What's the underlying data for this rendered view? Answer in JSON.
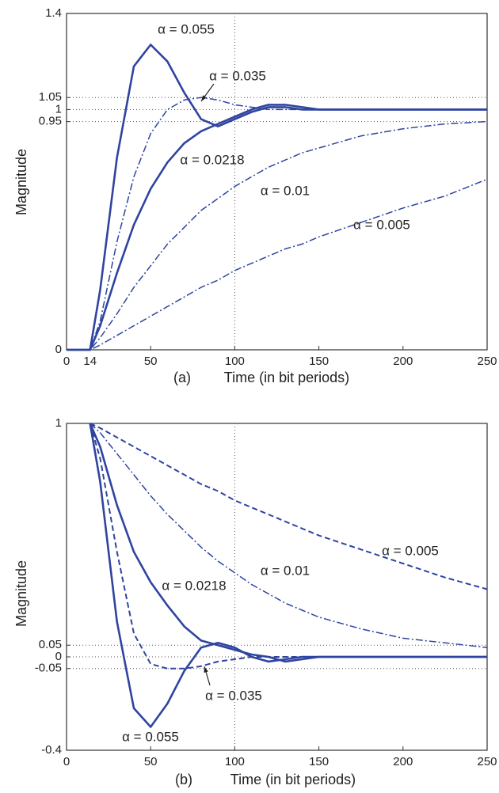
{
  "chart_data": [
    {
      "type": "line",
      "caption": "(a)",
      "xlabel": "Time (in bit periods)",
      "ylabel": "Magnitude",
      "x": [
        0,
        14,
        20,
        30,
        40,
        50,
        60,
        70,
        80,
        90,
        100,
        110,
        120,
        130,
        140,
        150,
        175,
        200,
        225,
        250
      ],
      "xlim": [
        0,
        250
      ],
      "xticks": [
        0,
        14,
        50,
        100,
        150,
        200,
        250
      ],
      "ylim": [
        0,
        1.4
      ],
      "yticks": [
        0,
        0.95,
        1,
        1.05,
        1.4
      ],
      "xgrid": [
        100
      ],
      "ygrid": [
        0.95,
        1,
        1.05
      ],
      "series": [
        {
          "name": "α = 0.055",
          "color": "#2f44a0",
          "dash": "solid",
          "values": [
            0,
            0,
            0.25,
            0.8,
            1.18,
            1.27,
            1.2,
            1.07,
            0.96,
            0.93,
            0.96,
            0.99,
            1.01,
            1.01,
            1.0,
            1.0,
            1.0,
            1.0,
            1.0,
            1.0
          ]
        },
        {
          "name": "α = 0.035",
          "color": "#2f44a0",
          "dash": "dashdot",
          "values": [
            0,
            0,
            0.12,
            0.45,
            0.72,
            0.9,
            1.0,
            1.04,
            1.05,
            1.04,
            1.02,
            1.01,
            1.0,
            1.0,
            1.0,
            1.0,
            1.0,
            1.0,
            1.0,
            1.0
          ]
        },
        {
          "name": "α = 0.0218",
          "color": "#2f44a0",
          "dash": "solid",
          "values": [
            0,
            0,
            0.1,
            0.32,
            0.52,
            0.67,
            0.78,
            0.86,
            0.91,
            0.94,
            0.97,
            1.0,
            1.02,
            1.02,
            1.01,
            1.0,
            1.0,
            1.0,
            1.0,
            1.0
          ]
        },
        {
          "name": "α = 0.01",
          "color": "#2f44a0",
          "dash": "dashdot",
          "values": [
            0,
            0,
            0.05,
            0.15,
            0.26,
            0.35,
            0.44,
            0.51,
            0.58,
            0.63,
            0.68,
            0.72,
            0.76,
            0.79,
            0.82,
            0.84,
            0.89,
            0.92,
            0.94,
            0.95
          ]
        },
        {
          "name": "α = 0.005",
          "color": "#2f44a0",
          "dash": "dashdot",
          "values": [
            0,
            0,
            0.02,
            0.06,
            0.1,
            0.14,
            0.18,
            0.22,
            0.26,
            0.29,
            0.33,
            0.36,
            0.39,
            0.42,
            0.44,
            0.47,
            0.53,
            0.59,
            0.64,
            0.71
          ]
        }
      ]
    },
    {
      "type": "line",
      "caption": "(b)",
      "xlabel": "Time (in bit periods)",
      "ylabel": "Magnitude",
      "x": [
        14,
        20,
        30,
        40,
        50,
        60,
        70,
        80,
        90,
        100,
        110,
        120,
        130,
        140,
        150,
        175,
        200,
        225,
        250
      ],
      "xlim": [
        0,
        250
      ],
      "xticks": [
        0,
        50,
        100,
        150,
        200,
        250
      ],
      "ylim": [
        -0.4,
        1
      ],
      "yticks": [
        -0.4,
        -0.05,
        0,
        0.05,
        1
      ],
      "xgrid": [
        100
      ],
      "ygrid": [
        -0.05,
        0,
        0.05
      ],
      "series": [
        {
          "name": "α = 0.055",
          "color": "#2f44a0",
          "dash": "solid",
          "values": [
            1,
            0.75,
            0.15,
            -0.22,
            -0.3,
            -0.2,
            -0.06,
            0.04,
            0.06,
            0.04,
            0.0,
            -0.02,
            -0.01,
            0,
            0,
            0,
            0,
            0,
            0
          ]
        },
        {
          "name": "α = 0.035",
          "color": "#2f44a0",
          "dash": "dashed",
          "values": [
            1,
            0.85,
            0.45,
            0.1,
            -0.03,
            -0.05,
            -0.05,
            -0.04,
            -0.02,
            -0.01,
            0,
            0,
            0,
            0,
            0,
            0,
            0,
            0,
            0
          ]
        },
        {
          "name": "α = 0.0218",
          "color": "#2f44a0",
          "dash": "solid",
          "values": [
            1,
            0.9,
            0.65,
            0.45,
            0.32,
            0.22,
            0.13,
            0.07,
            0.05,
            0.03,
            0.01,
            0,
            -0.02,
            -0.01,
            0,
            0,
            0,
            0,
            0
          ]
        },
        {
          "name": "α = 0.01",
          "color": "#2f44a0",
          "dash": "dashdot",
          "values": [
            1,
            0.96,
            0.87,
            0.78,
            0.69,
            0.61,
            0.54,
            0.47,
            0.41,
            0.36,
            0.31,
            0.27,
            0.23,
            0.2,
            0.17,
            0.12,
            0.08,
            0.06,
            0.04
          ]
        },
        {
          "name": "α = 0.005",
          "color": "#2f44a0",
          "dash": "dashed",
          "values": [
            1,
            0.98,
            0.94,
            0.9,
            0.86,
            0.82,
            0.78,
            0.74,
            0.71,
            0.67,
            0.64,
            0.61,
            0.58,
            0.55,
            0.52,
            0.46,
            0.4,
            0.34,
            0.29
          ]
        }
      ]
    }
  ]
}
